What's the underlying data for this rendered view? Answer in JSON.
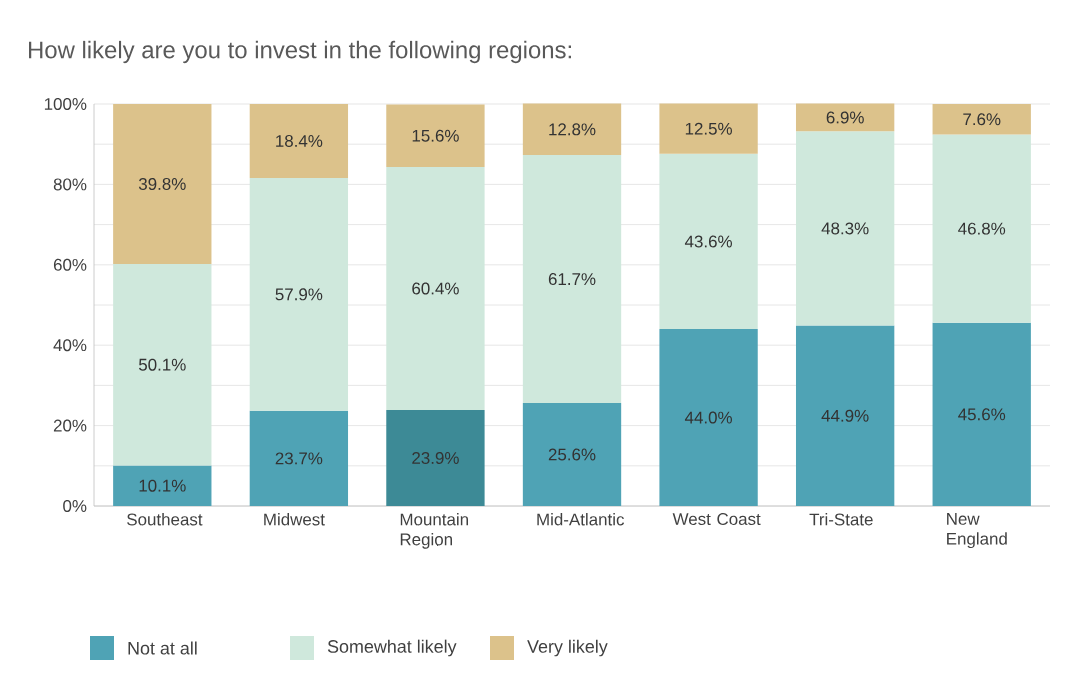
{
  "chart_data": {
    "type": "bar",
    "stacked": true,
    "title": "How likely are you to invest in the following regions:",
    "categories": [
      "Southeast",
      "Midwest",
      "Mountain Region",
      "Mid-Atlantic",
      "West Coast",
      "Tri-State",
      "New England"
    ],
    "series": [
      {
        "name": "Not at all",
        "color": "#4fa3b5",
        "colors": [
          "#4fa3b5",
          "#4fa3b5",
          "#3d8a96",
          "#4fa3b5",
          "#4fa3b5",
          "#4fa3b5",
          "#4fa3b5"
        ],
        "values": [
          10.1,
          23.7,
          23.9,
          25.6,
          44.0,
          44.9,
          45.6
        ],
        "value_labels": [
          "10.1%",
          "23.7%",
          "23.9%",
          "25.6%",
          "44.0%",
          "44.9%",
          "45.6%"
        ]
      },
      {
        "name": "Somewhat likely",
        "color": "#cfe8dc",
        "values": [
          50.1,
          57.9,
          60.4,
          61.7,
          43.6,
          48.3,
          46.8
        ],
        "value_labels": [
          "50.1%",
          "57.9%",
          "60.4%",
          "61.7%",
          "43.6%",
          "48.3%",
          "46.8%"
        ]
      },
      {
        "name": "Very likely",
        "color": "#dcc28b",
        "values": [
          39.8,
          18.4,
          15.6,
          12.8,
          12.5,
          6.9,
          7.6
        ],
        "value_labels": [
          "39.8%",
          "18.4%",
          "15.6%",
          "12.8%",
          "12.5%",
          "6.9%",
          "7.6%"
        ]
      }
    ],
    "ylim": [
      0,
      100
    ],
    "yticks": [
      {
        "value": 0,
        "label": "0%"
      },
      {
        "value": 10,
        "label": null
      },
      {
        "value": 20,
        "label": "20%"
      },
      {
        "value": 30,
        "label": null
      },
      {
        "value": 40,
        "label": "40%"
      },
      {
        "value": 50,
        "label": null
      },
      {
        "value": 60,
        "label": "60%"
      },
      {
        "value": 70,
        "label": null
      },
      {
        "value": 80,
        "label": "80%"
      },
      {
        "value": 90,
        "label": null
      },
      {
        "value": 100,
        "label": "100%"
      }
    ],
    "grid": true,
    "legend": "bottom"
  }
}
